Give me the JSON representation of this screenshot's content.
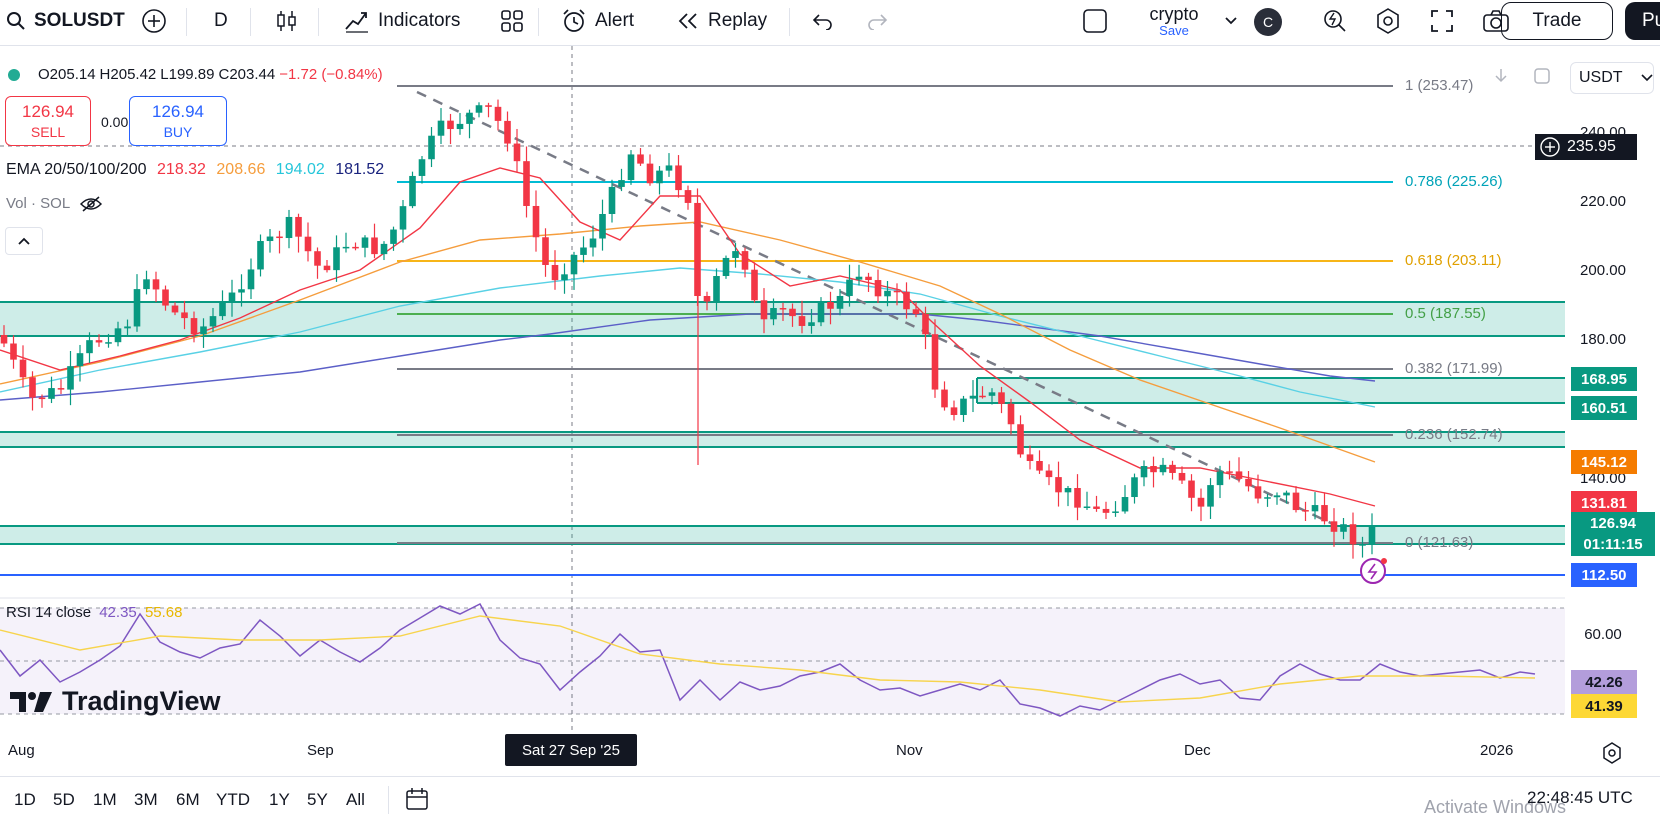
{
  "toolbar": {
    "symbol": "SOLUSDT",
    "interval": "D",
    "indicators": "Indicators",
    "alert": "Alert",
    "replay": "Replay",
    "layout_name": "crypto",
    "layout_save": "Save",
    "avatar": "C",
    "trade": "Trade",
    "publish": "Pu"
  },
  "legend": {
    "o": "O205.14",
    "h": "H205.42",
    "l": "L199.89",
    "c": "C203.44",
    "change": "−1.72 (−0.84%)"
  },
  "trade": {
    "sell_price": "126.94",
    "sell_label": "SELL",
    "spread": "0.00",
    "buy_price": "126.94",
    "buy_label": "BUY"
  },
  "ema": {
    "label": "EMA 20/50/100/200",
    "v20": "218.32",
    "v50": "208.66",
    "v100": "194.02",
    "v200": "181.52",
    "colors": {
      "ema20": "#f23645",
      "ema50": "#f59d3d",
      "ema100": "#59d1e5",
      "ema200": "#5b5fc7"
    }
  },
  "vol": {
    "label": "Vol · SOL"
  },
  "rsi": {
    "label": "RSI 14 close",
    "value": "42.35",
    "ma": "55.68",
    "axis_60": "60.00",
    "tag_rsi": "42.26",
    "tag_ma": "41.39"
  },
  "brand": {
    "name": "TradingView"
  },
  "currency": "USDT",
  "fib": {
    "l1": "1 (253.47)",
    "l786": "0.786 (225.26)",
    "l618": "0.618 (203.11)",
    "l5": "0.5 (187.55)",
    "l382": "0.382 (171.99)",
    "l236": "0.236 (152.74)",
    "l0": "0 (121.63)"
  },
  "price_axis": {
    "p240": "240.00",
    "p220": "220.00",
    "p200": "200.00",
    "p180": "180.00",
    "p140": "140.00"
  },
  "price_tags": {
    "crosshair": "235.95",
    "t168": "168.95",
    "t160": "160.51",
    "t145": "145.12",
    "t131": "131.81",
    "last": "126.94",
    "countdown": "01:11:15",
    "t112": "112.50"
  },
  "time_axis": {
    "aug": "Aug",
    "sep": "Sep",
    "crosshair": "Sat 27 Sep '25",
    "nov": "Nov",
    "dec": "Dec",
    "y2026": "2026"
  },
  "ranges": [
    "1D",
    "5D",
    "1M",
    "3M",
    "6M",
    "YTD",
    "1Y",
    "5Y",
    "All"
  ],
  "clock": "22:48:45 UTC",
  "os_watermark": "Activate Windows",
  "colors": {
    "up": "#089981",
    "down": "#f23645",
    "zone": "#22ab94",
    "support": "#2962ff"
  }
}
